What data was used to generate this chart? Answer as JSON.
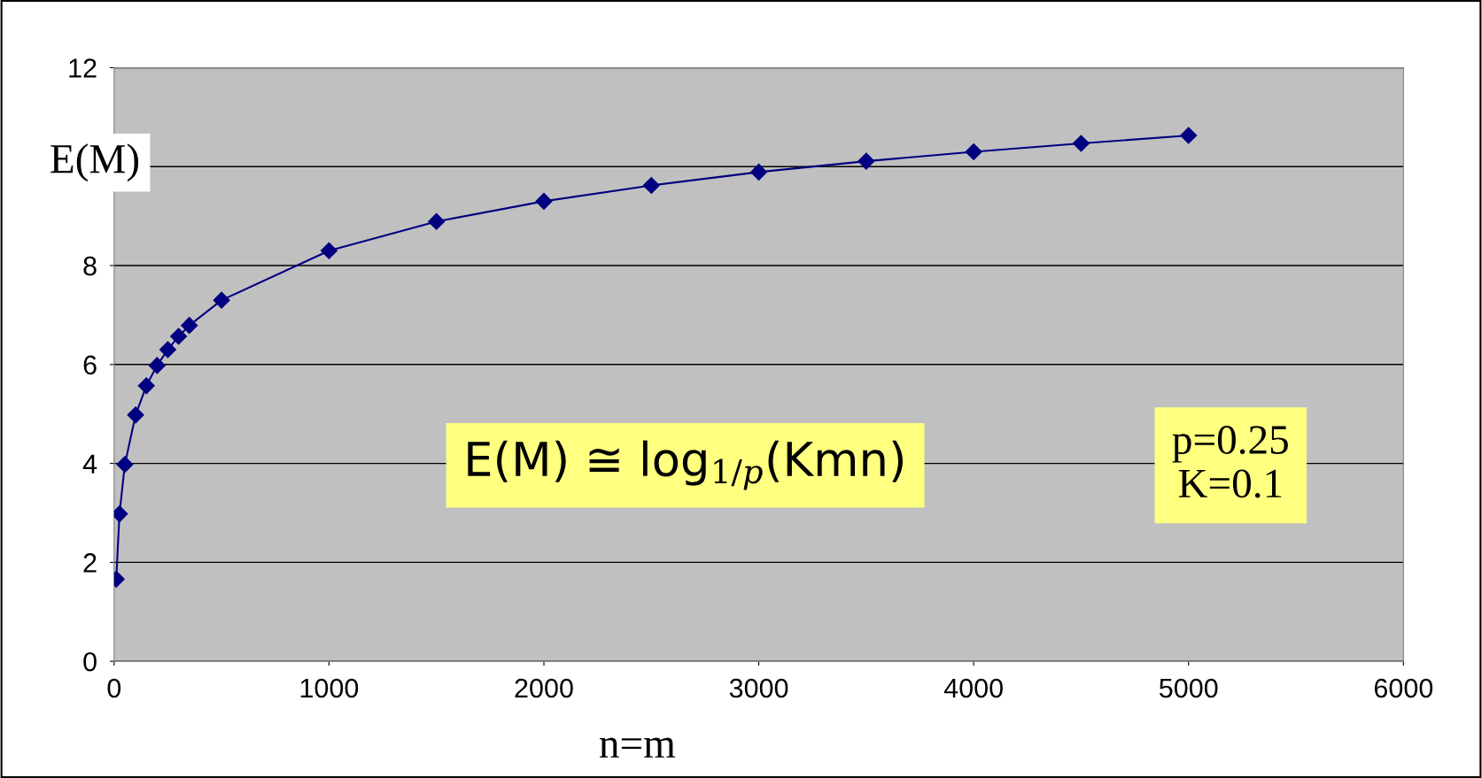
{
  "chart_data": {
    "type": "line",
    "xlabel": "n=m",
    "ylabel": "E(M)",
    "x": [
      10,
      25,
      50,
      100,
      150,
      200,
      250,
      300,
      350,
      500,
      1000,
      1500,
      2000,
      2500,
      3000,
      3500,
      4000,
      4500,
      5000
    ],
    "series": [
      {
        "color": "#000080",
        "values": [
          1.66,
          2.98,
          3.98,
          4.98,
          5.57,
          5.98,
          6.3,
          6.57,
          6.79,
          7.3,
          8.3,
          8.89,
          9.3,
          9.62,
          9.89,
          10.11,
          10.3,
          10.47,
          10.63
        ]
      }
    ],
    "xlim": [
      0,
      6000
    ],
    "xticks": [
      0,
      1000,
      2000,
      3000,
      4000,
      5000,
      6000
    ],
    "ylim": [
      0,
      12
    ],
    "yticks": [
      0,
      2,
      4,
      6,
      8,
      {
        "value": 10,
        "label": null
      },
      12
    ],
    "grid": "y",
    "marker": "diamond",
    "line_style": "solid",
    "legend": false,
    "annotations": [
      "E(M) ≅ log$_{1/p}$(Kmn)",
      "p=0.25\nK=0.1"
    ]
  }
}
